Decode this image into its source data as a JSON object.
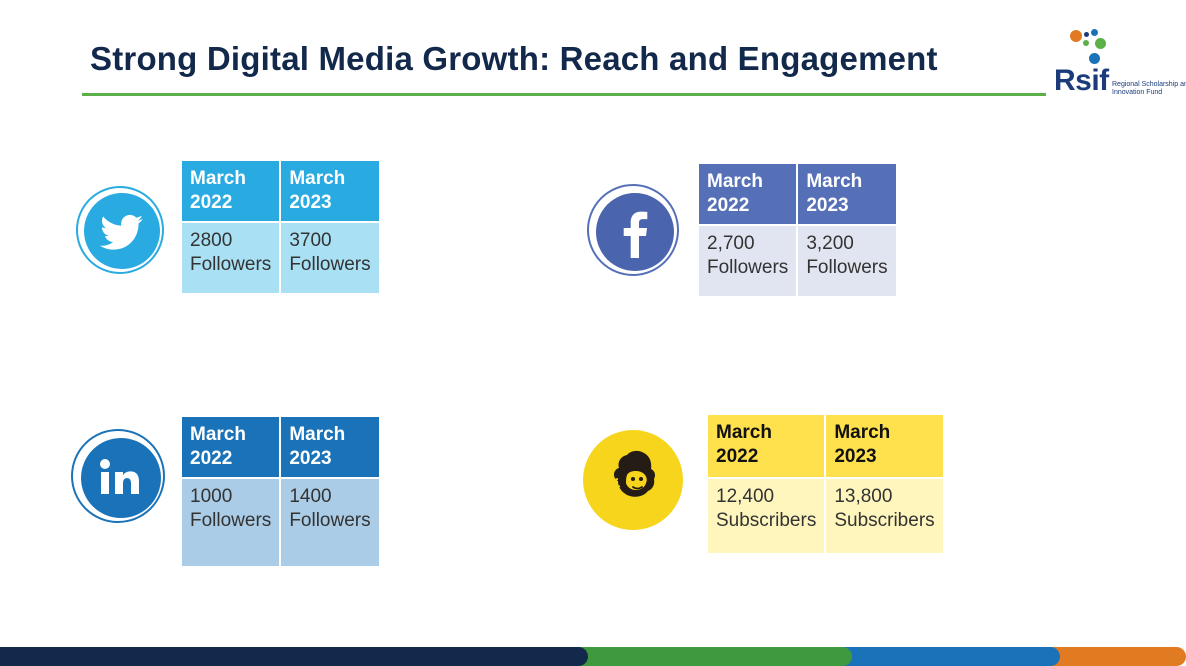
{
  "slide": {
    "title": "Strong Digital Media Growth: Reach and Engagement"
  },
  "logo": {
    "word": "Rsif",
    "subtitle": "Regional Scholarship and Innovation Fund"
  },
  "cards": {
    "twitter": {
      "icon": "twitter-bird-icon",
      "col1_header": "March 2022",
      "col2_header": "March 2023",
      "col1_value": "2800",
      "col1_unit": "Followers",
      "col2_value": "3700",
      "col2_unit": "Followers",
      "accent": "#29abe2"
    },
    "facebook": {
      "icon": "facebook-icon",
      "col1_header": "March 2022",
      "col2_header": "March 2023",
      "col1_value": "2,700",
      "col1_unit": "Followers",
      "col2_value": "3,200",
      "col2_unit": "Followers",
      "accent": "#5670b8"
    },
    "linkedin": {
      "icon": "linkedin-icon",
      "col1_header": "March 2022",
      "col2_header": "March 2023",
      "col1_value": "1000",
      "col1_unit": "Followers",
      "col2_value": "1400",
      "col2_unit": "Followers",
      "accent": "#1a73b8"
    },
    "mailchimp": {
      "icon": "mailchimp-icon",
      "col1_header": "March 2022",
      "col2_header": "March 2023",
      "col1_value": "12,400",
      "col1_unit": "Subscribers",
      "col2_value": "13,800",
      "col2_unit": "Subscribers",
      "accent": "#ffe14d"
    }
  }
}
